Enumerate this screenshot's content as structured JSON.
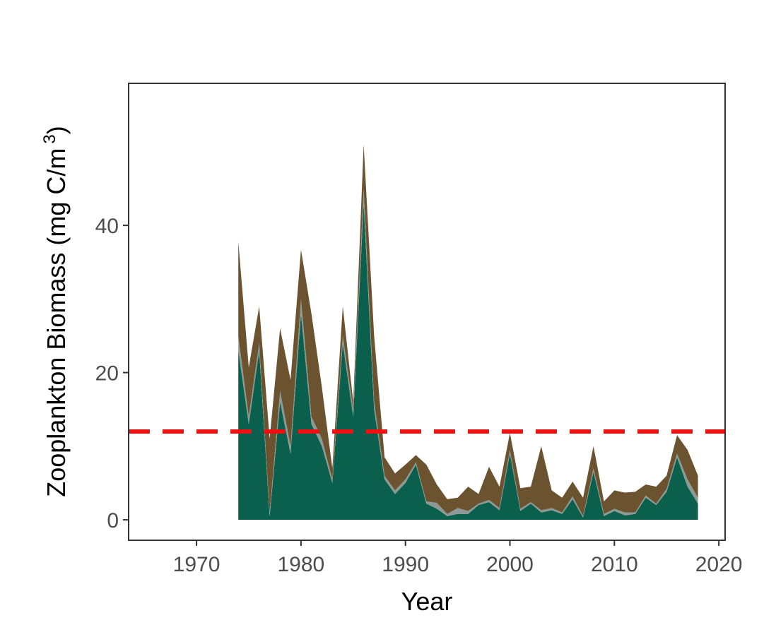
{
  "chart_data": {
    "type": "stacked_area",
    "x_label": "Year",
    "y_label": "Zooplankton Biomass (mg C/m",
    "y_label_superscript": "3",
    "y_label_end": ")",
    "x": [
      1974,
      1975,
      1976,
      1977,
      1978,
      1979,
      1980,
      1981,
      1982,
      1983,
      1984,
      1985,
      1986,
      1987,
      1988,
      1989,
      1990,
      1991,
      1992,
      1993,
      1994,
      1995,
      1996,
      1997,
      1998,
      1999,
      2000,
      2001,
      2002,
      2003,
      2004,
      2005,
      2006,
      2007,
      2008,
      2009,
      2010,
      2011,
      2012,
      2013,
      2014,
      2015,
      2016,
      2017,
      2018
    ],
    "series": [
      {
        "color": "#0b5f4d",
        "values": [
          23,
          13,
          23,
          0.5,
          16,
          9,
          28,
          13,
          10,
          5,
          24,
          14,
          43,
          15,
          5.5,
          3.5,
          5,
          7.5,
          2.2,
          1.5,
          0.5,
          0.8,
          0.8,
          2,
          2.4,
          1.3,
          9,
          1.2,
          2.2,
          1,
          1.3,
          0.8,
          2.8,
          0.3,
          6.5,
          0.5,
          1.2,
          0.6,
          0.8,
          3,
          2,
          3.8,
          8.5,
          4.5,
          2.2
        ]
      },
      {
        "color": "#8c9994",
        "values": [
          2,
          1,
          1,
          0.5,
          1.5,
          1,
          2,
          1,
          1,
          0.5,
          1,
          1,
          2,
          1,
          0.5,
          0.5,
          0.5,
          0.3,
          0.3,
          0.8,
          0.3,
          0.8,
          0.4,
          0.2,
          0.3,
          0.3,
          0.5,
          0.3,
          0.2,
          0.3,
          0.3,
          0.2,
          0.4,
          0.2,
          0.5,
          0.3,
          0.3,
          0.4,
          0.2,
          0.3,
          0.2,
          0.4,
          0.5,
          1,
          0.8
        ]
      },
      {
        "color": "#6b5330",
        "values": [
          12.8,
          6.7,
          5,
          10,
          8.5,
          9,
          6.7,
          14,
          7,
          1.5,
          4,
          1,
          6,
          9,
          2.5,
          2.3,
          2,
          1,
          5,
          2.5,
          2,
          1.4,
          3.3,
          1.3,
          4.5,
          2.9,
          2.3,
          2.8,
          2.1,
          8.7,
          2.4,
          2,
          2,
          2.5,
          3,
          1.7,
          2.5,
          2.7,
          2.8,
          1.5,
          2.3,
          1.8,
          2.5,
          4,
          3
        ]
      }
    ],
    "reference_line": 12,
    "reference_color": "#ee1111",
    "xlim": [
      1963.5,
      2020.6
    ],
    "ylim": [
      -2.78,
      59.3
    ],
    "xticks": [
      1970,
      1980,
      1990,
      2000,
      2010,
      2020
    ],
    "yticks": [
      0,
      20,
      40
    ]
  }
}
